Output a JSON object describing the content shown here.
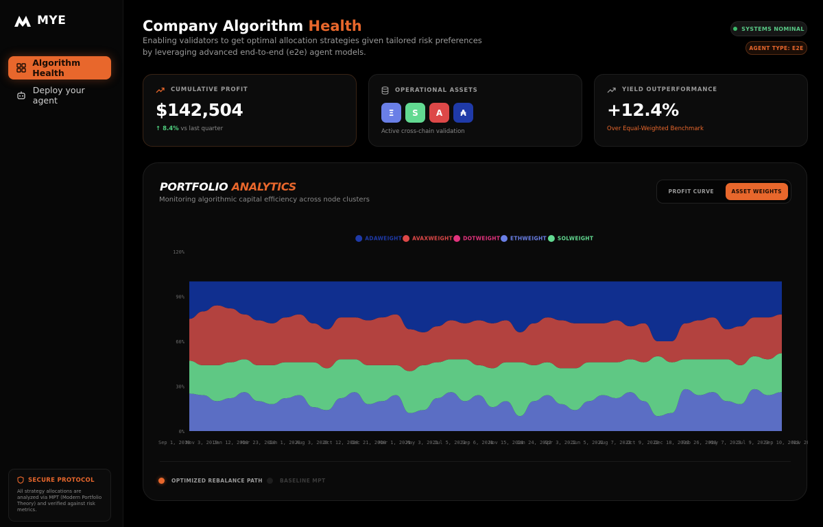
{
  "app": {
    "logo_text": "MYE"
  },
  "sidebar": {
    "items": [
      {
        "label": "Algorithm Health",
        "icon": "grid-icon",
        "active": true
      },
      {
        "label": "Deploy your agent",
        "icon": "robot-icon",
        "active": false
      }
    ],
    "secure": {
      "title": "SECURE PROTOCOL",
      "text": "All strategy allocations are analyzed via MPT (Modern Portfolio Theory) and verified against risk metrics."
    }
  },
  "header": {
    "title_main": "Company Algorithm ",
    "title_accent": "Health",
    "subtitle": "Enabling validators to get optimal allocation strategies given tailored risk preferences by leveraging advanced end-to-end (e2e) agent models.",
    "status_badge": "SYSTEMS NOMINAL",
    "agent_badge": "AGENT TYPE: E2E"
  },
  "cards": {
    "profit": {
      "label": "CUMULATIVE PROFIT",
      "value": "$142,504",
      "change": "↑ 8.4%",
      "change_suffix": " vs last quarter"
    },
    "assets": {
      "label": "OPERATIONAL ASSETS",
      "tokens": [
        {
          "symbol": "Ξ",
          "color": "#6a7fe6"
        },
        {
          "symbol": "S",
          "color": "#62d991"
        },
        {
          "symbol": "A",
          "color": "#dd4848"
        },
        {
          "symbol": "₳",
          "color": "#1f3aa8"
        }
      ],
      "caption": "Active cross-chain validation"
    },
    "yield": {
      "label": "YIELD OUTPERFORMANCE",
      "value": "+12.4%",
      "caption": "Over Equal-Weighted Benchmark"
    }
  },
  "analytics": {
    "title_main": "PORTFOLIO ",
    "title_accent": "ANALYTICS",
    "subtitle": "Monitoring algorithmic capital efficiency across node clusters",
    "toggle": [
      {
        "label": "PROFIT CURVE",
        "active": false
      },
      {
        "label": "ASSET WEIGHTS",
        "active": true
      }
    ],
    "footer_legend": [
      {
        "label": "OPTIMIZED REBALANCE PATH",
        "color": "#e8672c",
        "text_color": "#9a9a9a"
      },
      {
        "label": "BASELINE MPT",
        "color": "#1e1e1e",
        "text_color": "#3a3a3a"
      }
    ]
  },
  "chart_data": {
    "type": "area",
    "title": "",
    "xlabel": "",
    "ylabel": "",
    "ylim": [
      0,
      120
    ],
    "y_ticks": [
      "0%",
      "30%",
      "60%",
      "90%",
      "120%"
    ],
    "x_tick_labels": [
      "Sep 1, 2019",
      "Nov 3, 2019",
      "Jan 12, 2020",
      "Mar 23, 2020",
      "Jun 1, 2020",
      "Aug 3, 2020",
      "Oct 12, 2020",
      "Dec 21, 2020",
      "Mar 1, 2021",
      "May 3, 2021",
      "Jul 5, 2021",
      "Sep 6, 2021",
      "Nov 15, 2021",
      "Jan 24, 2022",
      "Apr 3, 2022",
      "Jun 5, 2022",
      "Aug 7, 2022",
      "Oct 9, 2022",
      "Dec 18, 2022",
      "Feb 26, 2023",
      "May 7, 2023",
      "Jul 9, 2023",
      "Sep 10, 2023",
      "Nov 26, 2023"
    ],
    "legend": [
      {
        "name": "ADAWEIGHT",
        "color": "#1f3aa8"
      },
      {
        "name": "AVAXWEIGHT",
        "color": "#dd4848"
      },
      {
        "name": "DOTWEIGHT",
        "color": "#e2337d"
      },
      {
        "name": "ETHWEIGHT",
        "color": "#6a7fe6"
      },
      {
        "name": "SOLWEIGHT",
        "color": "#62d991"
      }
    ],
    "stack_order_bottom_to_top": [
      "ETHWEIGHT",
      "SOLWEIGHT",
      "AVAXWEIGHT",
      "ADAWEIGHT"
    ],
    "series": [
      {
        "name": "ETHWEIGHT",
        "color": "#5b6ec4",
        "values": [
          25,
          24,
          20,
          22,
          26,
          20,
          18,
          22,
          24,
          16,
          14,
          22,
          26,
          18,
          20,
          24,
          12,
          14,
          22,
          26,
          20,
          24,
          16,
          20,
          10,
          20,
          24,
          18,
          14,
          20,
          24,
          22,
          26,
          20,
          10,
          12,
          28,
          24,
          26,
          20,
          18,
          28,
          24,
          26
        ]
      },
      {
        "name": "SOLWEIGHT",
        "color": "#5fc884",
        "values": [
          22,
          20,
          24,
          24,
          22,
          24,
          26,
          24,
          22,
          30,
          28,
          26,
          22,
          26,
          24,
          20,
          28,
          30,
          24,
          22,
          28,
          20,
          26,
          26,
          36,
          24,
          22,
          24,
          28,
          26,
          22,
          24,
          22,
          26,
          40,
          34,
          20,
          24,
          22,
          28,
          26,
          22,
          24,
          26
        ]
      },
      {
        "name": "AVAXWEIGHT",
        "color": "#b3423f",
        "values": [
          28,
          36,
          40,
          36,
          30,
          30,
          28,
          30,
          32,
          26,
          26,
          28,
          28,
          30,
          32,
          34,
          28,
          22,
          24,
          26,
          24,
          30,
          30,
          28,
          20,
          28,
          30,
          32,
          30,
          26,
          26,
          28,
          22,
          26,
          10,
          14,
          24,
          26,
          28,
          20,
          26,
          26,
          28,
          26
        ]
      },
      {
        "name": "ADAWEIGHT",
        "color": "#102f8f",
        "values": [
          25,
          20,
          16,
          18,
          22,
          26,
          28,
          24,
          22,
          28,
          32,
          24,
          24,
          26,
          24,
          22,
          32,
          34,
          30,
          26,
          28,
          26,
          28,
          26,
          34,
          28,
          24,
          26,
          28,
          28,
          28,
          26,
          30,
          28,
          40,
          40,
          28,
          26,
          24,
          32,
          30,
          24,
          24,
          22
        ]
      }
    ]
  }
}
